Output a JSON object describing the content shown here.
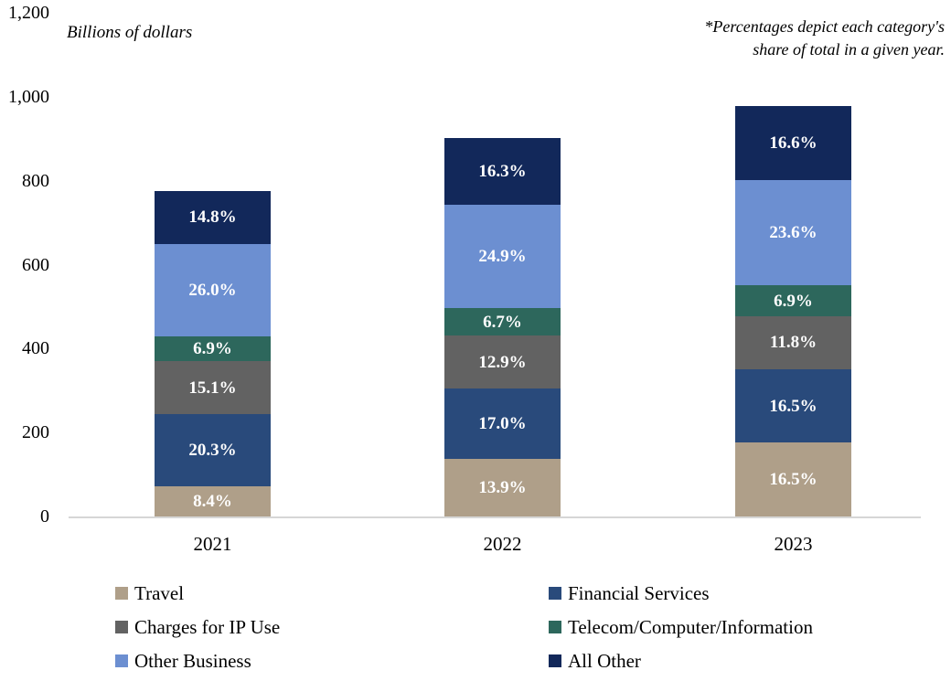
{
  "chart_data": {
    "type": "bar",
    "variant": "stacked-column",
    "title": "",
    "xlabel": "",
    "ylabel": "Billions of dollars",
    "note_lines": [
      "*Percentages depict each category's",
      "share of total in a given year."
    ],
    "grid": false,
    "y_axis": {
      "min": 0,
      "max": 1200,
      "ticks": [
        {
          "value": 0,
          "label": "0"
        },
        {
          "value": 200,
          "label": "200"
        },
        {
          "value": 400,
          "label": "400"
        },
        {
          "value": 600,
          "label": "600"
        },
        {
          "value": 800,
          "label": "800"
        },
        {
          "value": 1000,
          "label": "1,000"
        },
        {
          "value": 1200,
          "label": "1,200"
        }
      ]
    },
    "categories": [
      {
        "name": "Travel",
        "color": "#AF9F89"
      },
      {
        "name": "Financial Services",
        "color": "#294A7B"
      },
      {
        "name": "Charges for IP Use",
        "color": "#626262"
      },
      {
        "name": "Telecom/Computer/Information",
        "color": "#2D675C"
      },
      {
        "name": "Other Business",
        "color": "#6C8FD1"
      },
      {
        "name": "All Other",
        "color": "#12285A"
      }
    ],
    "stack_order_note": "segments stacked bottom-to-top in categories order",
    "years": [
      {
        "label": "2021",
        "total_billions_est": 775,
        "percent": [
          8.4,
          20.3,
          15.1,
          6.9,
          26.0,
          14.8
        ],
        "percent_labels": [
          "8.4%",
          "20.3%",
          "15.1%",
          "6.9%",
          "26.0%",
          "14.8%"
        ]
      },
      {
        "label": "2022",
        "total_billions_est": 902,
        "percent": [
          13.9,
          17.0,
          12.9,
          6.7,
          24.9,
          16.3
        ],
        "percent_labels": [
          "13.9%",
          "17.0%",
          "12.9%",
          "6.7%",
          "24.9%",
          "16.3%"
        ]
      },
      {
        "label": "2023",
        "total_billions_est": 978,
        "percent": [
          16.5,
          16.5,
          11.8,
          6.9,
          23.6,
          16.6
        ],
        "percent_labels": [
          "16.5%",
          "16.5%",
          "11.8%",
          "6.9%",
          "23.6%",
          "16.6%"
        ]
      }
    ],
    "legend": {
      "position": "bottom",
      "columns": [
        [
          "Travel",
          "Charges for IP Use",
          "Other Business"
        ],
        [
          "Financial Services",
          "Telecom/Computer/Information",
          "All Other"
        ]
      ]
    }
  },
  "colors": {
    "background": "#FFFFFF",
    "axis_line": "#D6D6D6",
    "text": "#000000",
    "segment_label_text": "#FFFFFF"
  }
}
